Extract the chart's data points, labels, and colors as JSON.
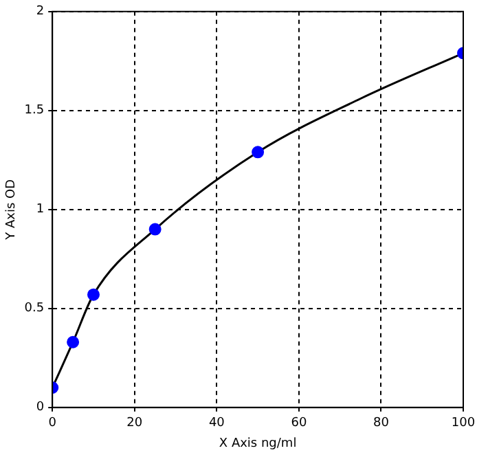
{
  "chart_data": {
    "type": "scatter",
    "xlabel": "X Axis ng/ml",
    "ylabel": "Y Axis OD",
    "xlim": [
      0,
      100
    ],
    "xticks": [
      0,
      20,
      40,
      60,
      80,
      100
    ],
    "ylim": [
      0,
      2
    ],
    "yticks": [
      0,
      0.5,
      1,
      1.5,
      2
    ],
    "grid": true,
    "legend": false,
    "series": [
      {
        "type": "line",
        "color": "#000000",
        "marker": "none",
        "x": [
          0,
          5,
          10,
          25,
          50,
          75,
          100
        ],
        "values": [
          0.1,
          0.33,
          0.57,
          0.9,
          1.29,
          1.56,
          1.79
        ]
      },
      {
        "type": "scatter",
        "color": "#0000ff",
        "marker": "circle",
        "x": [
          0,
          5,
          10,
          25,
          50,
          100
        ],
        "values": [
          0.1,
          0.33,
          0.57,
          0.9,
          1.29,
          1.79
        ]
      }
    ]
  }
}
